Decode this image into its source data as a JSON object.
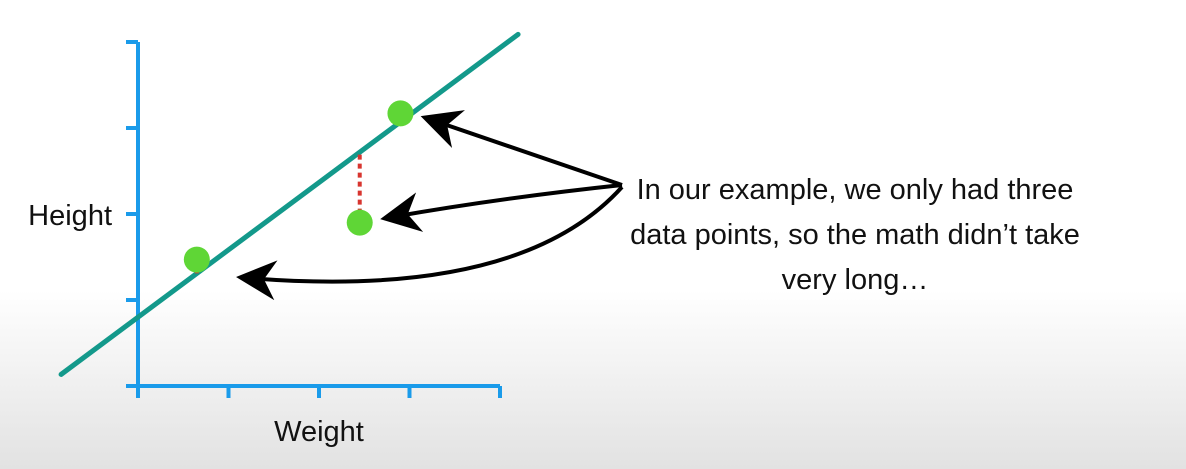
{
  "chart_data": {
    "type": "scatter",
    "xlabel": "Weight",
    "ylabel": "Height",
    "points": [
      {
        "x": 0.65,
        "y": 1.47
      },
      {
        "x": 2.45,
        "y": 1.9
      },
      {
        "x": 2.9,
        "y": 3.17
      }
    ],
    "fit_line": {
      "intercept": 0.8,
      "slope": 0.783
    },
    "xlim": [
      0,
      4
    ],
    "ylim": [
      0,
      4
    ],
    "x_ticks": [
      0,
      1,
      2,
      3,
      4
    ],
    "y_ticks": [
      0,
      1,
      2,
      3,
      4
    ],
    "grid": false,
    "colors": {
      "axis": "#1a9bea",
      "line": "#13998b",
      "point": "#5fd636",
      "residual": "#d8352f",
      "arrow": "#000000"
    }
  },
  "annotation": {
    "text": "In our example, we only had three data points, so the math didn’t take very long…"
  }
}
